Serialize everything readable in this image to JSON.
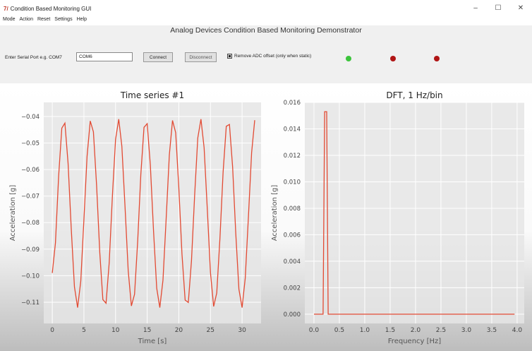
{
  "window": {
    "title": "Condition Based Monitoring GUI",
    "icon": "tk-feather-icon",
    "controls": [
      "–",
      "☐",
      "✕"
    ]
  },
  "menu": [
    "Mode",
    "Action",
    "Reset",
    "Settings",
    "Help"
  ],
  "app_title": "Analog Devices Condition Based Monitoring Demonstrator",
  "serial": {
    "label": "Enter Serial Port e.g. COM7",
    "value": "COM6"
  },
  "buttons": {
    "connect": "Connect",
    "disconnect": "Disconnect"
  },
  "offset_checkbox": {
    "label": "Remove ADC offset (only when static)",
    "checked": true
  },
  "leds": [
    {
      "color": "#3cc43c"
    },
    {
      "color": "#b01515"
    },
    {
      "color": "#b01515"
    }
  ],
  "colors": {
    "line": "#e24a33",
    "plot_bg": "#e5e5e5",
    "grid": "#ffffff"
  },
  "chart_data": [
    {
      "type": "line",
      "title": "Time series #1",
      "xlabel": "Time [s]",
      "ylabel": "Acceleration [g]",
      "xlim": [
        -1.35,
        33.0
      ],
      "ylim": [
        -0.118,
        -0.0347
      ],
      "xticks": [
        0,
        5,
        10,
        15,
        20,
        25,
        30
      ],
      "xtick_labels": [
        "0",
        "5",
        "10",
        "15",
        "20",
        "25",
        "30"
      ],
      "yticks": [
        -0.04,
        -0.05,
        -0.06,
        -0.07,
        -0.08,
        -0.09,
        -0.1,
        -0.11
      ],
      "ytick_labels": [
        "−0.04",
        "−0.05",
        "−0.06",
        "−0.07",
        "−0.08",
        "−0.09",
        "−0.10",
        "−0.11"
      ],
      "x": [
        0,
        0.5,
        1,
        1.5,
        2,
        2.5,
        3,
        3.5,
        4,
        4.5,
        5,
        5.5,
        6,
        6.5,
        7,
        7.5,
        8,
        8.5,
        9,
        9.5,
        10,
        10.5,
        11,
        11.5,
        12,
        12.5,
        13,
        13.5,
        14,
        14.5,
        15,
        15.5,
        16,
        16.5,
        17,
        17.5,
        18,
        18.5,
        19,
        19.5,
        20,
        20.5,
        21,
        21.5,
        22,
        22.5,
        23,
        23.5,
        24,
        24.5,
        25,
        25.5,
        26,
        26.5,
        27,
        27.5,
        28,
        28.5,
        29,
        29.5,
        30,
        30.5,
        31,
        31.5,
        32
      ],
      "y": [
        -0.099,
        -0.0876,
        -0.0625,
        -0.0444,
        -0.0425,
        -0.0577,
        -0.0824,
        -0.1042,
        -0.112,
        -0.102,
        -0.079,
        -0.055,
        -0.0417,
        -0.0458,
        -0.066,
        -0.0912,
        -0.109,
        -0.1104,
        -0.095,
        -0.07,
        -0.0486,
        -0.041,
        -0.0512,
        -0.074,
        -0.0981,
        -0.1114,
        -0.107,
        -0.0867,
        -0.0618,
        -0.0441,
        -0.0427,
        -0.0584,
        -0.0831,
        -0.1047,
        -0.112,
        -0.1016,
        -0.0785,
        -0.0545,
        -0.0415,
        -0.0461,
        -0.0666,
        -0.0918,
        -0.1092,
        -0.1101,
        -0.0943,
        -0.0695,
        -0.0481,
        -0.041,
        -0.0518,
        -0.0749,
        -0.0989,
        -0.1116,
        -0.1065,
        -0.086,
        -0.061,
        -0.0437,
        -0.043,
        -0.0591,
        -0.0838,
        -0.1051,
        -0.112,
        -0.1009,
        -0.0777,
        -0.0537,
        -0.0414
      ]
    },
    {
      "type": "line",
      "title": "DFT, 1 Hz/bin",
      "xlabel": "Frequency [Hz]",
      "ylabel": "Acceleration [g]",
      "xlim": [
        -0.18,
        4.14
      ],
      "ylim": [
        -0.0007,
        0.016
      ],
      "xticks": [
        0,
        0.5,
        1,
        1.5,
        2,
        2.5,
        3,
        3.5,
        4
      ],
      "xtick_labels": [
        "0.0",
        "0.5",
        "1.0",
        "1.5",
        "2.0",
        "2.5",
        "3.0",
        "3.5",
        "4.0"
      ],
      "yticks": [
        0,
        0.002,
        0.004,
        0.006,
        0.008,
        0.01,
        0.012,
        0.014,
        0.016
      ],
      "ytick_labels": [
        "0.000",
        "0.002",
        "0.004",
        "0.006",
        "0.008",
        "0.010",
        "0.012",
        "0.014",
        "0.016"
      ],
      "x": [
        0,
        0.18,
        0.21,
        0.25,
        0.28,
        3.95
      ],
      "y": [
        0,
        0,
        0.0153,
        0.0153,
        0,
        0
      ]
    }
  ]
}
